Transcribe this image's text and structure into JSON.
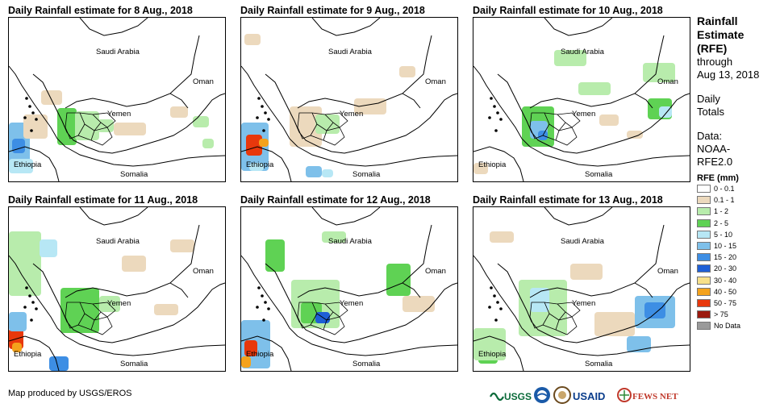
{
  "panels": [
    {
      "title": "Daily Rainfall estimate for 8 Aug., 2018"
    },
    {
      "title": "Daily Rainfall estimate for 9 Aug., 2018"
    },
    {
      "title": "Daily Rainfall estimate for 10 Aug., 2018"
    },
    {
      "title": "Daily Rainfall estimate for 11 Aug., 2018"
    },
    {
      "title": "Daily Rainfall estimate for 12 Aug., 2018"
    },
    {
      "title": "Daily Rainfall estimate for 13 Aug., 2018"
    }
  ],
  "map_labels": {
    "saudi": "Saudi Arabia",
    "oman": "Oman",
    "yemen": "Yemen",
    "ethiopia": "Ethiopia",
    "somalia": "Somalia"
  },
  "legend": {
    "title1": "Rainfall",
    "title2": "Estimate",
    "title3": "(RFE)",
    "through1": "through",
    "through2": "Aug 13, 2018",
    "totals1": "Daily",
    "totals2": "Totals",
    "data1": "Data:",
    "data2": "NOAA-",
    "data3": "RFE2.0",
    "rfe_header": "RFE (mm)",
    "classes": [
      {
        "label": "0 - 0.1",
        "color": "#ffffff"
      },
      {
        "label": "0.1 - 1",
        "color": "#ecd9bd"
      },
      {
        "label": "1 - 2",
        "color": "#b8ecac"
      },
      {
        "label": "2 - 5",
        "color": "#5fd254"
      },
      {
        "label": "5 - 10",
        "color": "#b7e7f5"
      },
      {
        "label": "10 - 15",
        "color": "#7ec0ea"
      },
      {
        "label": "15 - 20",
        "color": "#3d8ee4"
      },
      {
        "label": "20 - 30",
        "color": "#1e5fd6"
      },
      {
        "label": "30 - 40",
        "color": "#f7e08a"
      },
      {
        "label": "40 - 50",
        "color": "#f4a21c"
      },
      {
        "label": "50 - 75",
        "color": "#e8380c"
      },
      {
        "label": "> 75",
        "color": "#9b1a0e"
      },
      {
        "label": "No Data",
        "color": "#9a9a9a"
      }
    ]
  },
  "credit": "Map produced by USGS/EROS",
  "logos": {
    "usgs": "USGS",
    "usaid": "USAID",
    "fewsnet": "FEWS NET"
  }
}
